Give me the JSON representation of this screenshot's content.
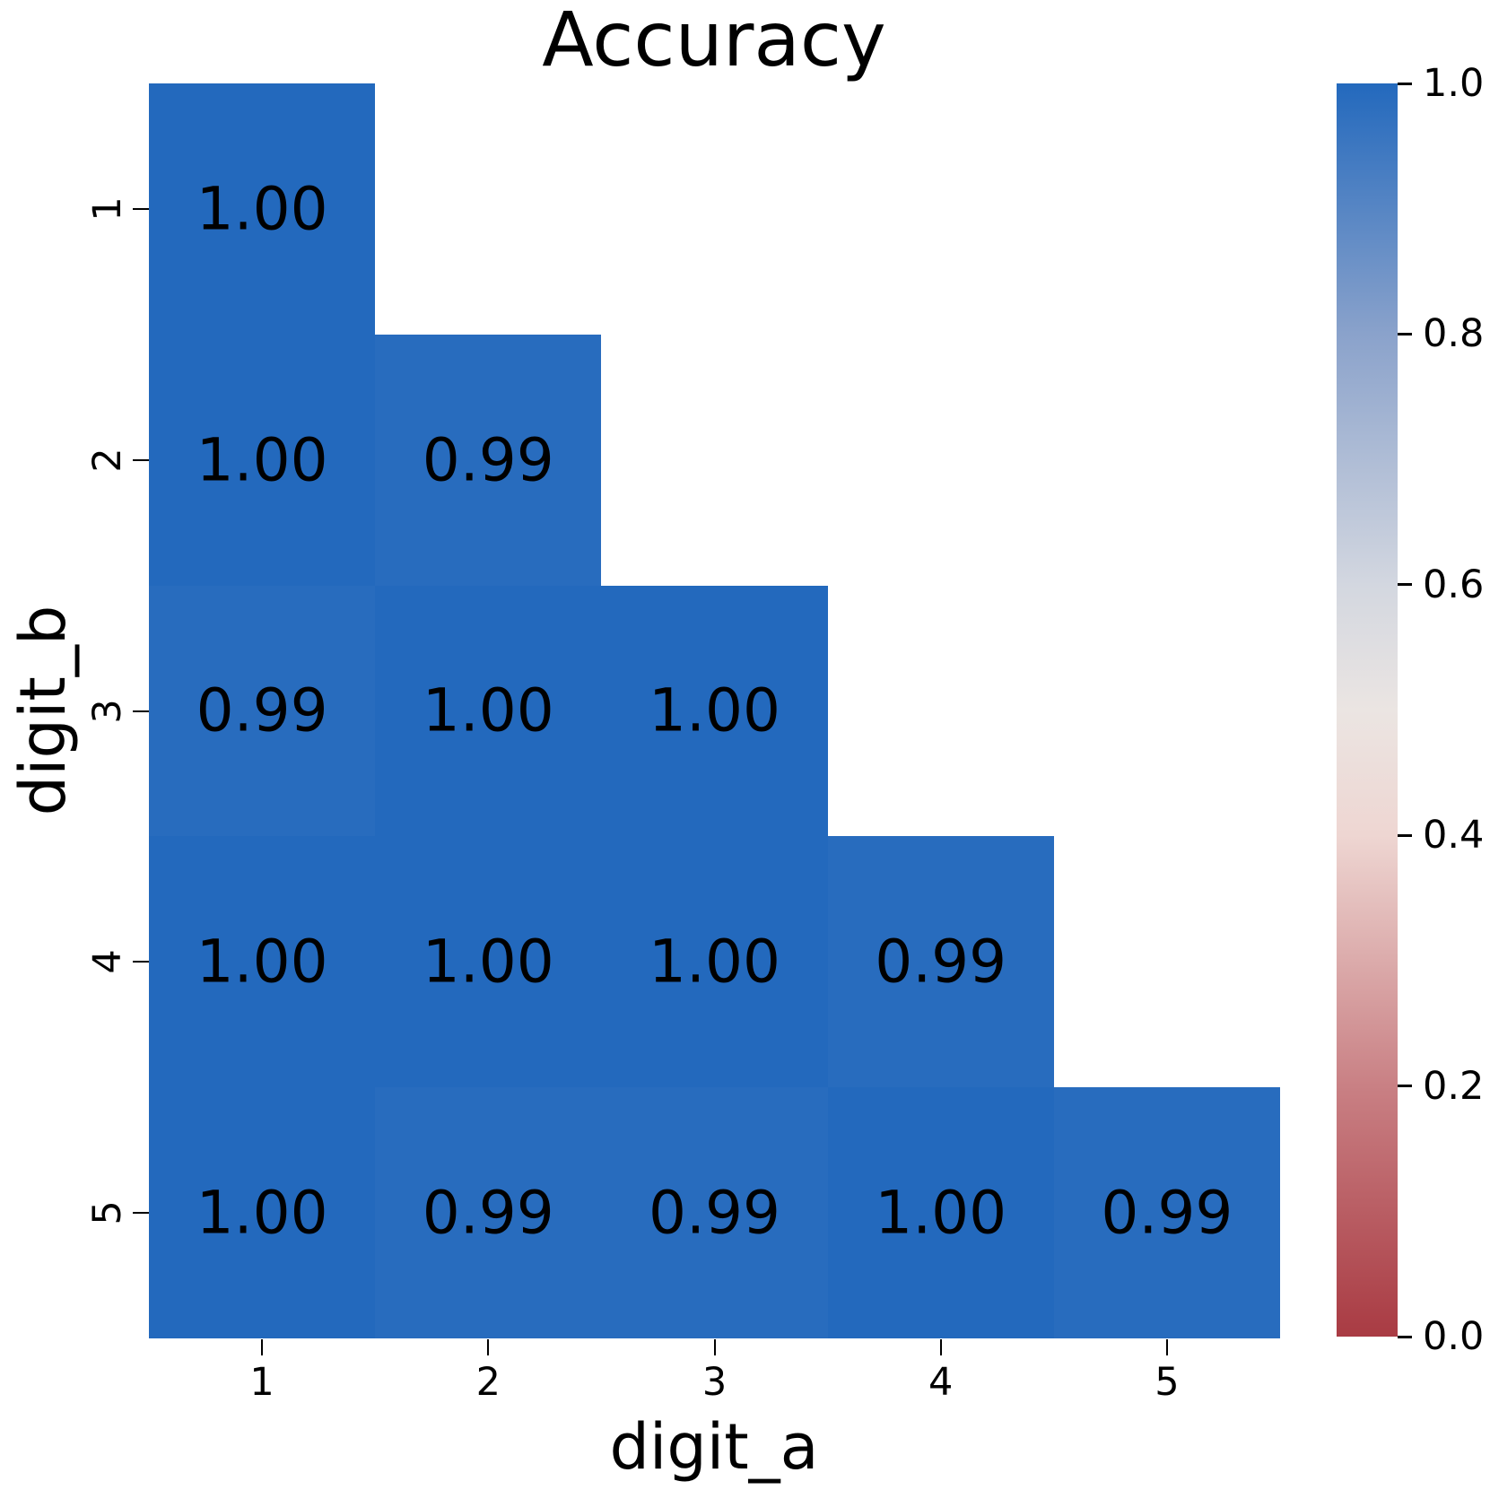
{
  "chart_data": {
    "type": "heatmap",
    "title": "Accuracy",
    "xlabel": "digit_a",
    "ylabel": "digit_b",
    "x_tick_labels": [
      "1",
      "2",
      "3",
      "4",
      "5"
    ],
    "y_tick_labels": [
      "1",
      "2",
      "3",
      "4",
      "5"
    ],
    "values": [
      [
        1.0,
        null,
        null,
        null,
        null
      ],
      [
        1.0,
        0.99,
        null,
        null,
        null
      ],
      [
        0.99,
        1.0,
        1.0,
        null,
        null
      ],
      [
        1.0,
        1.0,
        1.0,
        0.99,
        null
      ],
      [
        1.0,
        0.99,
        0.99,
        1.0,
        0.99
      ]
    ],
    "annotation_format": "2dp",
    "mask": "upper-triangle-hidden",
    "vmin": 0.0,
    "vmax": 1.0,
    "colorbar_tick_labels": [
      "1.0",
      "0.8",
      "0.6",
      "0.4",
      "0.2",
      "0.0"
    ],
    "colorbar_tick_values": [
      1.0,
      0.8,
      0.6,
      0.4,
      0.2,
      0.0
    ],
    "colormap_stops": [
      {
        "value": 1.0,
        "color": "#2369bd"
      },
      {
        "value": 0.8,
        "color": "#8aa2cb"
      },
      {
        "value": 0.6,
        "color": "#d3d7e0"
      },
      {
        "value": 0.5,
        "color": "#ebe5e2"
      },
      {
        "value": 0.4,
        "color": "#eed6d2"
      },
      {
        "value": 0.2,
        "color": "#c98084"
      },
      {
        "value": 0.0,
        "color": "#a93b43"
      }
    ],
    "colors": {
      "annotation_text": "#000000",
      "background": "#ffffff",
      "cell_value_1_00": "#2368bd",
      "cell_value_0_99": "#2a6cbe"
    }
  }
}
